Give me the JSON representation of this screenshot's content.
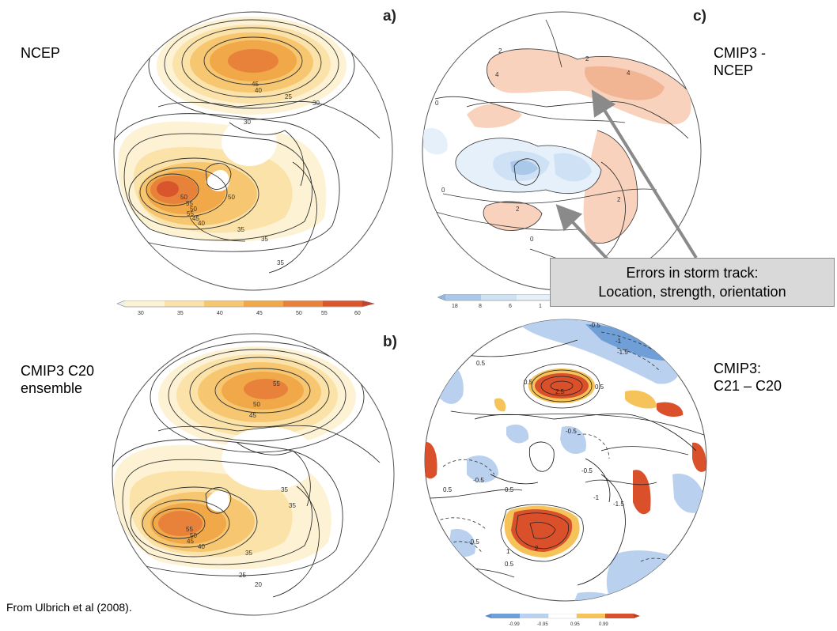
{
  "panels": {
    "a": {
      "letter": "a)",
      "caption": "NCEP"
    },
    "b": {
      "letter": "b)",
      "caption_line1": "CMIP3 C20",
      "caption_line2": "ensemble"
    },
    "c": {
      "letter": "c)",
      "caption_line1": "CMIP3 -",
      "caption_line2": "NCEP"
    },
    "d": {
      "caption_line1": "CMIP3:",
      "caption_line2": "C21 – C20"
    }
  },
  "colorbars": {
    "a": {
      "ticks": [
        "30",
        "35",
        "40",
        "45",
        "50",
        "55",
        "60"
      ],
      "colors": [
        "#fdf2d4",
        "#fbe2a8",
        "#f7c670",
        "#f0a848",
        "#e8823a",
        "#d9562c"
      ]
    },
    "c": {
      "ticks": [
        "18",
        "8",
        "6",
        "1"
      ],
      "colors": [
        "#a9c8ea",
        "#cfe1f4",
        "#e6f0fa"
      ]
    },
    "d": {
      "ticks": [
        "-0.99",
        "-0.95",
        "0.95",
        "0.99"
      ],
      "colors": [
        "#6f9fd6",
        "#b9d1ee",
        "#ffffff",
        "#f5c35a",
        "#d9502a"
      ]
    }
  },
  "map_labels": {
    "a": [
      "45",
      "40",
      "25",
      "30",
      "30",
      "50",
      "55",
      "50",
      "55",
      "45",
      "40",
      "50",
      "35",
      "35",
      "35"
    ],
    "b": [
      "55",
      "50",
      "45",
      "35",
      "35",
      "55",
      "50",
      "45",
      "40",
      "35",
      "25",
      "20"
    ],
    "c": [
      "2",
      "4",
      "2",
      "4",
      "0",
      "2",
      "0",
      "2",
      "0",
      "0"
    ],
    "d": [
      "-0.5",
      "-1",
      "-1.5",
      "0.5",
      "0.5",
      "2.5",
      "0.5",
      "-0.5",
      "-0.5",
      "0.5",
      "-0.5",
      "-1",
      "-1.5",
      "2",
      "1",
      "0.5",
      "-0.5",
      "0.5"
    ]
  },
  "callout": {
    "line1": "Errors in storm track:",
    "line2": "Location, strength, orientation"
  },
  "source": "From Ulbrich et al (2008)."
}
